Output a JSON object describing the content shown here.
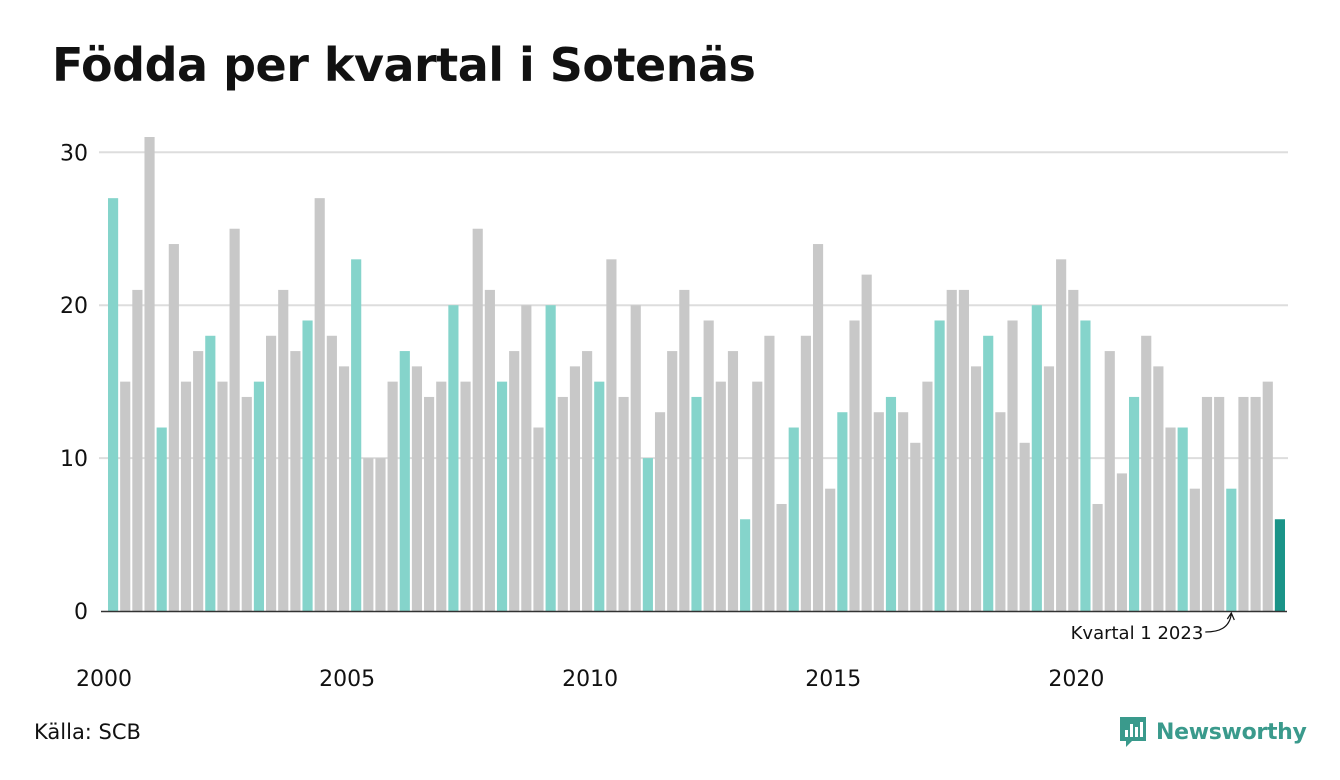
{
  "title": "Födda per kvartal i Sotenäs",
  "source": "Källa: SCB",
  "brand": {
    "name": "Newsworthy",
    "icon": "newsworthy-logo-icon"
  },
  "colors": {
    "q1_bar": "#85d4cb",
    "other_bar": "#c8c8c8",
    "highlight_bar": "#1a9488",
    "grid": "#dddddd",
    "axis": "#333333",
    "brand": "#3a9a8c"
  },
  "chart_data": {
    "type": "bar",
    "x_ticks": [
      "2000",
      "2005",
      "2010",
      "2015",
      "2020"
    ],
    "y_ticks": [
      0,
      10,
      20,
      30
    ],
    "ylim": [
      0,
      31
    ],
    "grid": true,
    "quarters_per_year": 4,
    "first_year": 2000,
    "values": [
      27,
      15,
      21,
      31,
      12,
      24,
      15,
      17,
      18,
      15,
      25,
      14,
      15,
      18,
      21,
      17,
      19,
      27,
      18,
      16,
      23,
      10,
      10,
      15,
      17,
      16,
      14,
      15,
      20,
      15,
      25,
      21,
      15,
      17,
      20,
      12,
      20,
      14,
      16,
      17,
      15,
      23,
      14,
      20,
      10,
      13,
      17,
      21,
      14,
      19,
      15,
      17,
      6,
      15,
      18,
      7,
      12,
      18,
      24,
      8,
      13,
      19,
      22,
      13,
      14,
      13,
      11,
      15,
      19,
      21,
      21,
      16,
      18,
      13,
      19,
      11,
      20,
      16,
      23,
      21,
      19,
      7,
      17,
      9,
      14,
      18,
      16,
      12,
      12,
      8,
      14,
      14,
      8,
      14,
      14,
      15,
      6
    ],
    "annotation": {
      "text": "Kvartal 1 2023",
      "target_index": 92
    }
  }
}
